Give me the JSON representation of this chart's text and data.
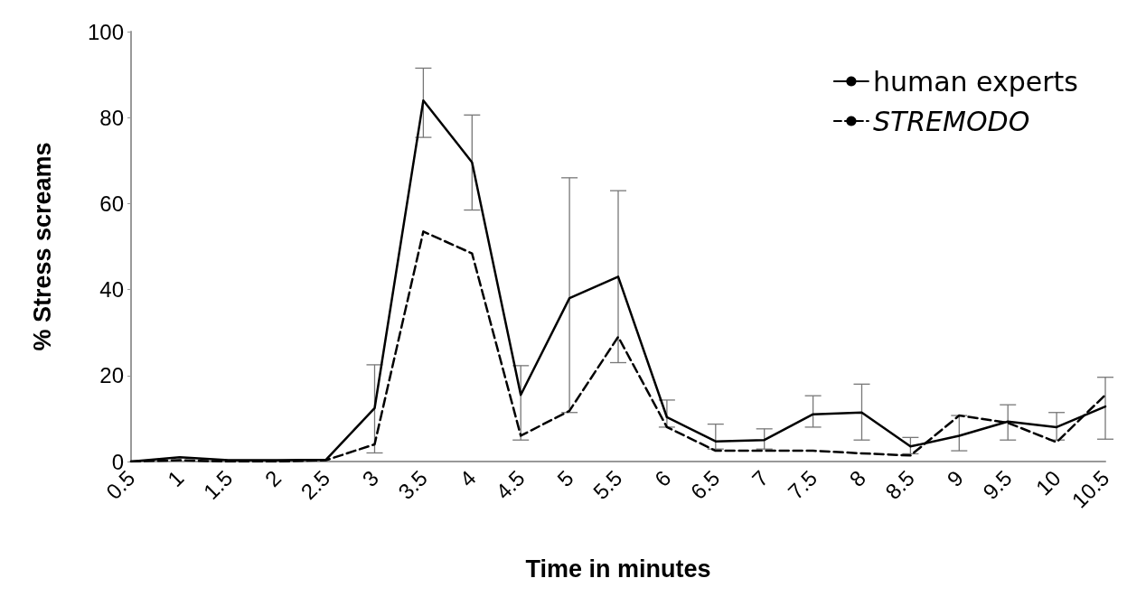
{
  "chart_data": {
    "type": "line",
    "xlabel": "Time in minutes",
    "ylabel": "% Stress screams",
    "categories": [
      "0.5",
      "1",
      "1.5",
      "2",
      "2.5",
      "3",
      "3.5",
      "4",
      "4.5",
      "5",
      "5.5",
      "6",
      "6.5",
      "7",
      "7.5",
      "8",
      "8.5",
      "9",
      "9.5",
      "10",
      "10.5"
    ],
    "ylim": [
      0,
      100
    ],
    "yticks": [
      0,
      20,
      40,
      60,
      80,
      100
    ],
    "grid": false,
    "legend": "top right",
    "marker": "none",
    "series": [
      {
        "name": "human experts",
        "color": "#000000",
        "line_style": "solid",
        "values": [
          0,
          1,
          0.3,
          0.3,
          0.4,
          12.4,
          84,
          69.6,
          15.5,
          38,
          43,
          10.3,
          4.7,
          5,
          11,
          11.4,
          3.5,
          6,
          9.3,
          8,
          12.8
        ],
        "errors": [
          null,
          null,
          null,
          null,
          null,
          [
            2,
            22.5
          ],
          [
            75.4,
            91.5
          ],
          [
            58.5,
            80.6
          ],
          [
            5,
            22.3
          ],
          [
            11.4,
            66
          ],
          [
            23,
            63
          ],
          [
            8,
            14.3
          ],
          [
            2.9,
            8.7
          ],
          [
            2.9,
            7.6
          ],
          [
            8,
            15.3
          ],
          [
            5,
            18
          ],
          [
            1.8,
            5.6
          ],
          [
            2.5,
            10.7
          ],
          [
            5,
            13.2
          ],
          [
            5,
            11.4
          ],
          [
            5.2,
            19.6
          ]
        ]
      },
      {
        "name": "STREMODO",
        "color": "#000000",
        "line_style": "dashed",
        "values": [
          0,
          0.3,
          0,
          0,
          0.3,
          4,
          53.5,
          48.4,
          6,
          11.8,
          29,
          8,
          2.5,
          2.5,
          2.5,
          1.9,
          1.4,
          10.7,
          9,
          4.5,
          15.5
        ]
      }
    ]
  }
}
